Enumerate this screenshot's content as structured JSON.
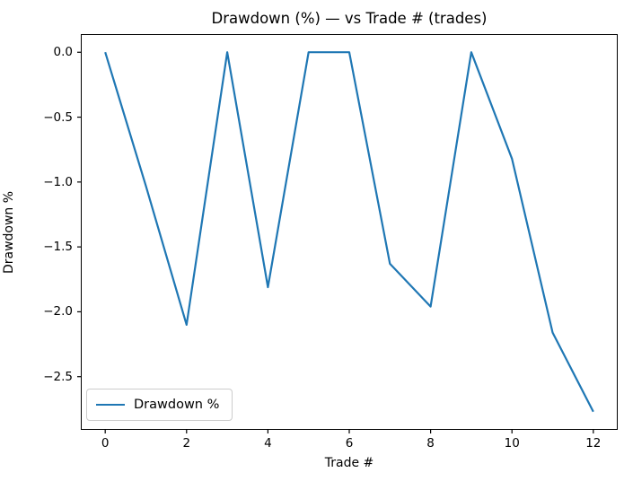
{
  "chart_data": {
    "type": "line",
    "title": "Drawdown (%) — vs Trade # (trades)",
    "xlabel": "Trade #",
    "ylabel": "Drawdown %",
    "x": [
      0,
      1,
      2,
      3,
      4,
      5,
      6,
      7,
      8,
      9,
      10,
      11,
      12
    ],
    "series": [
      {
        "name": "Drawdown %",
        "color": "#1f77b4",
        "values": [
          0.0,
          -1.03,
          -2.1,
          0.0,
          -1.81,
          0.0,
          0.0,
          -1.63,
          -1.96,
          0.0,
          -0.82,
          -2.16,
          -2.77
        ]
      }
    ],
    "xlim": [
      -0.6,
      12.6
    ],
    "ylim": [
      -2.91,
      0.14
    ],
    "xticks": {
      "values": [
        0,
        2,
        4,
        6,
        8,
        10,
        12
      ],
      "labels": [
        "0",
        "2",
        "4",
        "6",
        "8",
        "10",
        "12"
      ]
    },
    "yticks": {
      "values": [
        0.0,
        -0.5,
        -1.0,
        -1.5,
        -2.0,
        -2.5
      ],
      "labels": [
        "0.0",
        "−0.5",
        "−1.0",
        "−1.5",
        "−2.0",
        "−2.5"
      ]
    },
    "grid": false,
    "legend": {
      "position": "lower left",
      "entries": [
        "Drawdown %"
      ]
    },
    "line_color": "#1f77b4",
    "spine_color": "#000000"
  }
}
